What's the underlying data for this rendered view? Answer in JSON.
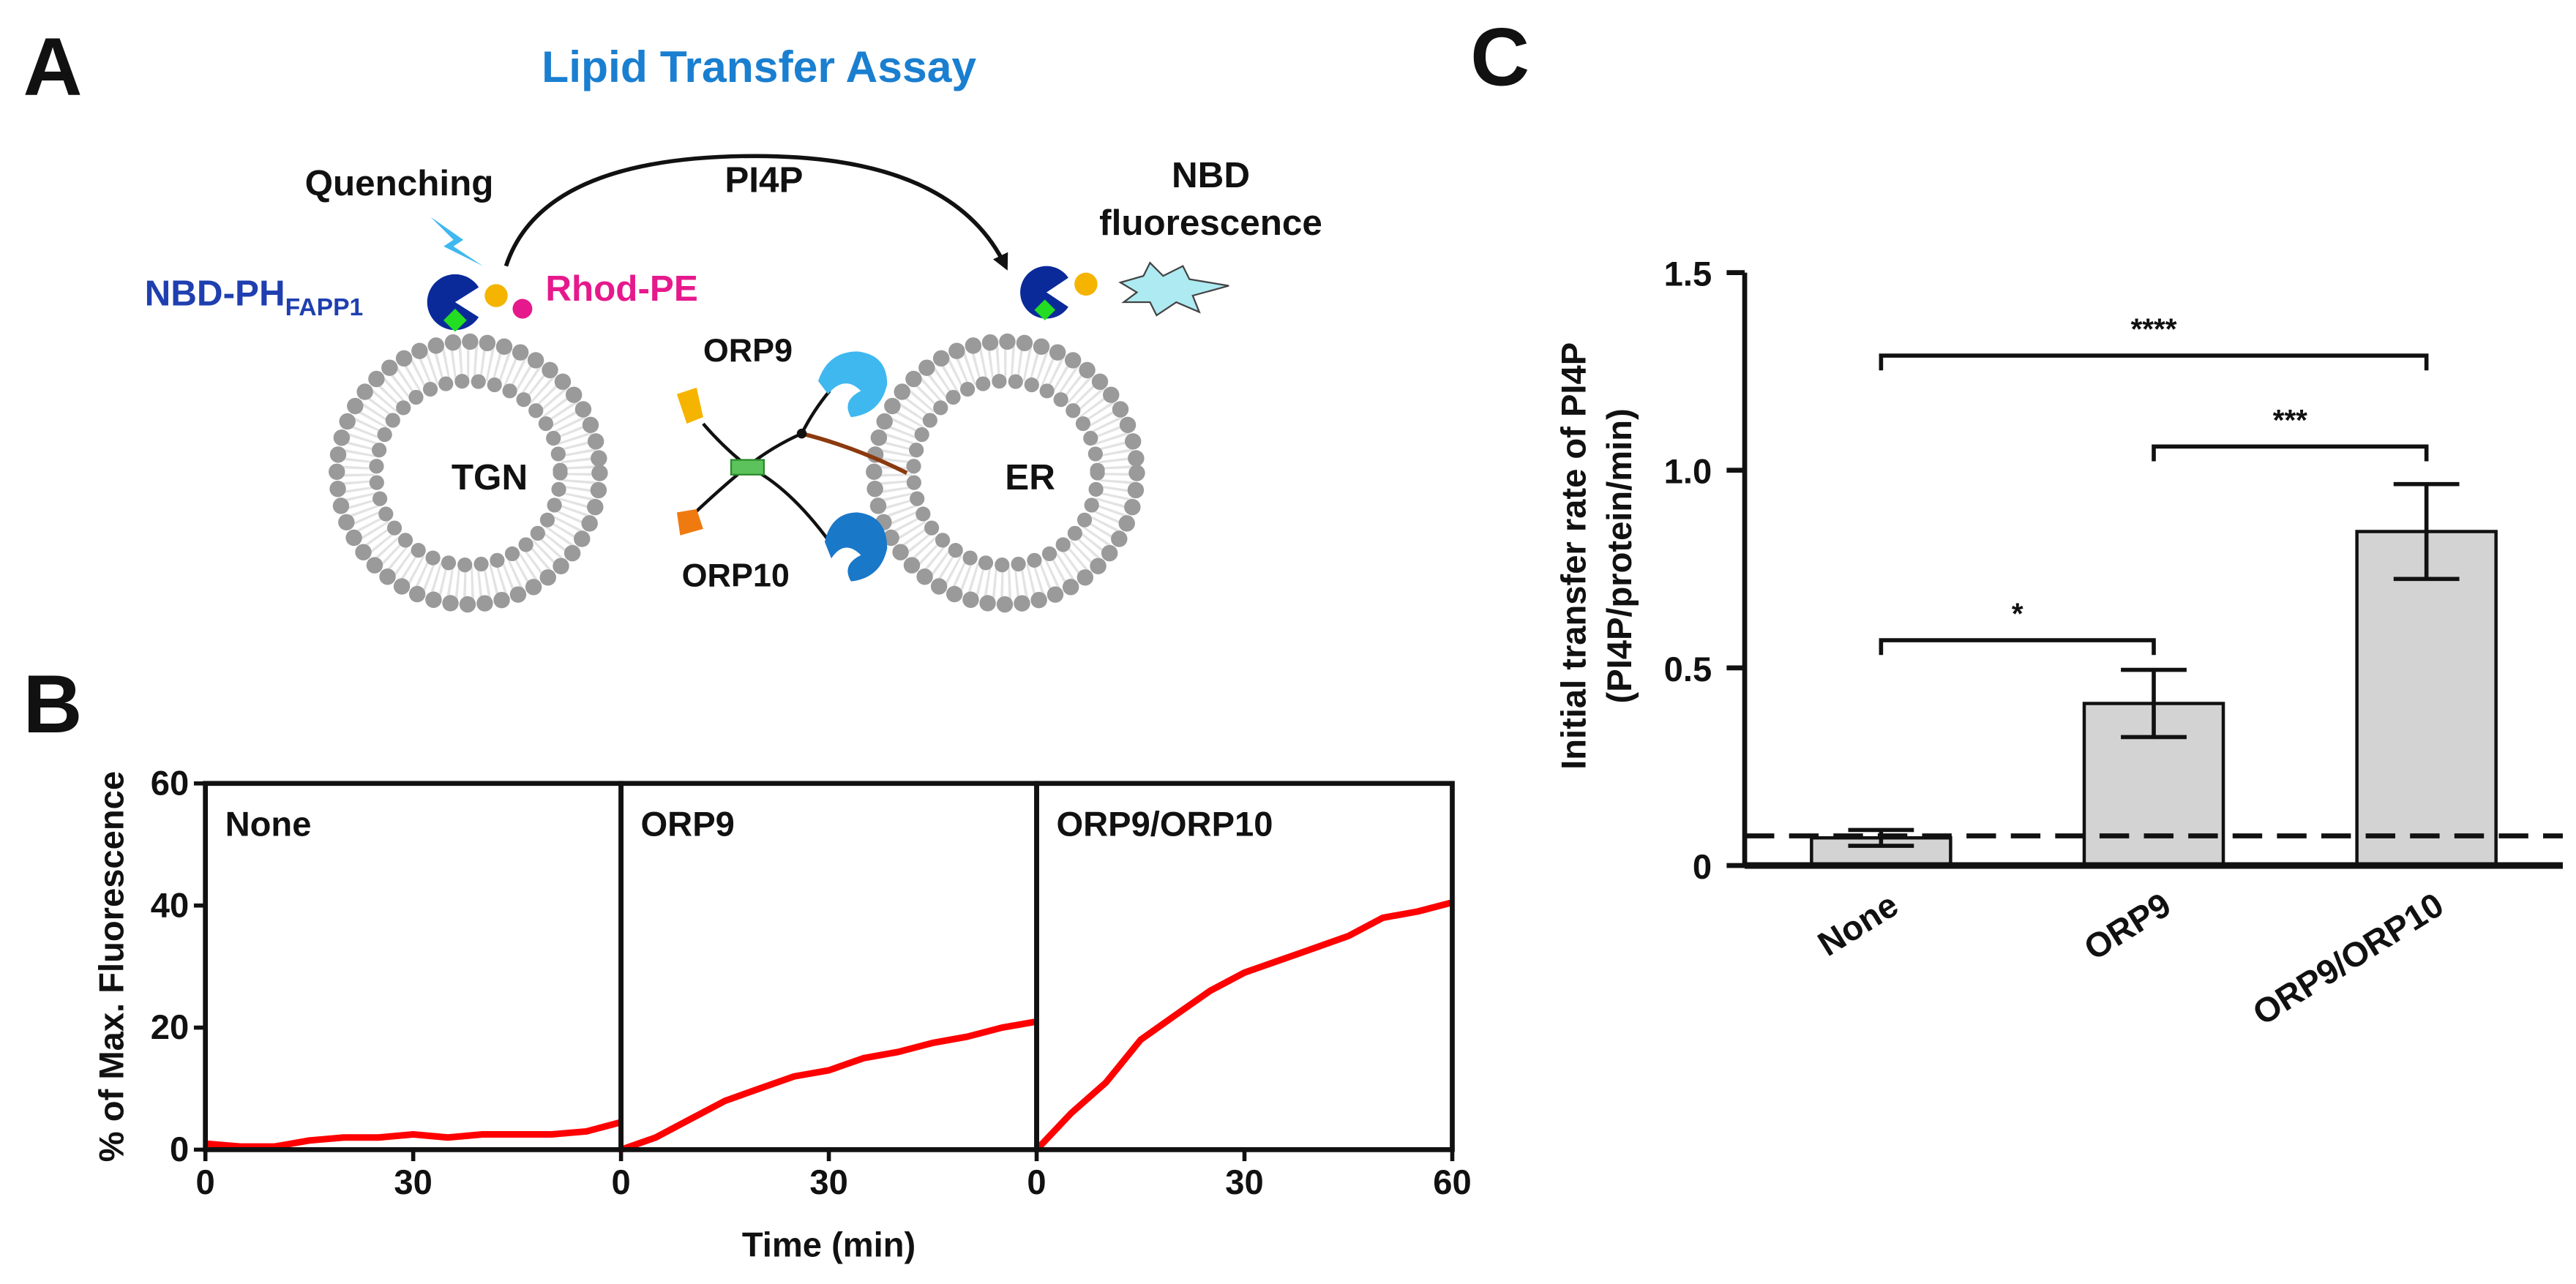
{
  "panel_labels": [
    "A",
    "B",
    "C"
  ],
  "diagram": {
    "title": "Lipid Transfer Assay",
    "quenching": "Quenching",
    "lipid": "PI4P",
    "nbd_line1": "NBD",
    "nbd_line2": "fluorescence",
    "nbd_ph": "NBD-PH",
    "nbd_ph_sub": "FAPP1",
    "rhod": "Rhod-PE",
    "orp9": "ORP9",
    "orp10": "ORP10",
    "tgn": "TGN",
    "er": "ER"
  },
  "chart_data": [
    {
      "type": "line",
      "title": "None",
      "ylabel": "% of Max. Fluorescence",
      "x": [
        0,
        5,
        10,
        15,
        20,
        25,
        30,
        35,
        40,
        45,
        50,
        55,
        60
      ],
      "values": [
        1,
        0.5,
        0.5,
        1.5,
        2,
        2,
        2.5,
        2,
        2.5,
        2.5,
        2.5,
        3,
        4.5
      ],
      "color": "#ff0000",
      "xlim": [
        0,
        60
      ],
      "ylim": [
        0,
        60
      ],
      "xticks": [
        0,
        30
      ],
      "yticks": [
        0,
        20,
        40,
        60
      ]
    },
    {
      "type": "line",
      "title": "ORP9",
      "xlabel": "Time (min)",
      "x": [
        0,
        5,
        10,
        15,
        20,
        25,
        30,
        35,
        40,
        45,
        50,
        55,
        60
      ],
      "values": [
        0,
        2,
        5,
        8,
        10,
        12,
        13,
        15,
        16,
        17.5,
        18.5,
        20,
        21
      ],
      "color": "#ff0000",
      "xlim": [
        0,
        60
      ],
      "ylim": [
        0,
        60
      ],
      "xticks": [
        0,
        30
      ]
    },
    {
      "type": "line",
      "title": "ORP9/ORP10",
      "x": [
        0,
        5,
        10,
        15,
        20,
        25,
        30,
        35,
        40,
        45,
        50,
        55,
        60
      ],
      "values": [
        0,
        6,
        11,
        18,
        22,
        26,
        29,
        31,
        33,
        35,
        38,
        39,
        40.5
      ],
      "color": "#ff0000",
      "xlim": [
        0,
        60
      ],
      "ylim": [
        0,
        60
      ],
      "xticks": [
        0,
        30,
        60
      ]
    },
    {
      "type": "bar",
      "ylabel": [
        "Initial transfer rate of PI4P",
        "(PI4P/protein/min)"
      ],
      "categories": [
        "None",
        "ORP9",
        "ORP9/ORP10"
      ],
      "values": [
        0.07,
        0.41,
        0.845
      ],
      "errors": [
        0.02,
        0.085,
        0.12
      ],
      "color": "#d3d3d3",
      "ylim": [
        0,
        1.5
      ],
      "yticks": [
        0,
        0.5,
        {
          "value": 1.0,
          "label": "1.0"
        },
        1.5
      ],
      "reference_line": 0.075,
      "annotations": [
        {
          "from": 0,
          "to": 2,
          "y": 1.29,
          "label": "****"
        },
        {
          "from": 1,
          "to": 2,
          "y": 1.06,
          "label": "***"
        },
        {
          "from": 0,
          "to": 1,
          "y": 0.57,
          "label": "*"
        }
      ]
    }
  ]
}
